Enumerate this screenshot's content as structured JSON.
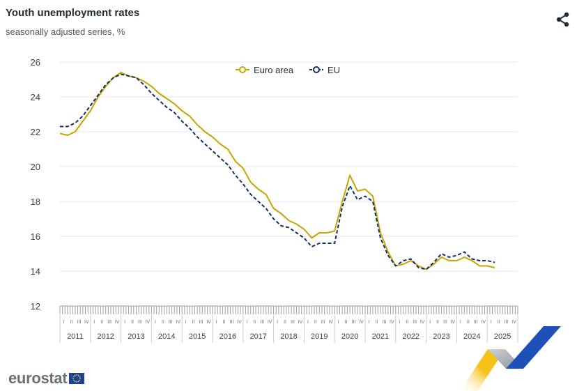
{
  "header": {
    "title": "Youth unemployment rates",
    "subtitle": "seasonally adjusted series, %",
    "share_icon": "share-icon"
  },
  "branding": {
    "logo_text": "eurostat",
    "flag_icon": "eu-flag-icon"
  },
  "colors": {
    "euro_area": "#c9a400",
    "eu": "#0e2f6e",
    "grid": "#e3e5ea",
    "axis_text": "#3c4048"
  },
  "chart_data": {
    "type": "line",
    "title": "Youth unemployment rates",
    "subtitle": "seasonally adjusted series, %",
    "xlabel": "",
    "ylabel": "",
    "ylim": [
      12,
      26
    ],
    "yticks": [
      12,
      14,
      16,
      18,
      20,
      22,
      24,
      26
    ],
    "grid": true,
    "legend_position": "top-center",
    "years": [
      "2011",
      "2012",
      "2013",
      "2014",
      "2015",
      "2016",
      "2017",
      "2018",
      "2019",
      "2020",
      "2021",
      "2022",
      "2023",
      "2024",
      "2025"
    ],
    "quarter_labels": [
      "I",
      "II",
      "III",
      "IV"
    ],
    "x_start": "2011-01",
    "x_end": "2025-12",
    "series": [
      {
        "name": "Euro area",
        "style": "solid",
        "points": [
          [
            "2011-01",
            21.9
          ],
          [
            "2011-04",
            21.8
          ],
          [
            "2011-07",
            22.0
          ],
          [
            "2011-10",
            22.6
          ],
          [
            "2012-01",
            23.2
          ],
          [
            "2012-04",
            24.0
          ],
          [
            "2012-07",
            24.6
          ],
          [
            "2012-10",
            25.1
          ],
          [
            "2013-01",
            25.4
          ],
          [
            "2013-04",
            25.2
          ],
          [
            "2013-07",
            25.1
          ],
          [
            "2013-10",
            24.9
          ],
          [
            "2014-01",
            24.6
          ],
          [
            "2014-04",
            24.2
          ],
          [
            "2014-07",
            23.9
          ],
          [
            "2014-10",
            23.6
          ],
          [
            "2015-01",
            23.2
          ],
          [
            "2015-04",
            22.9
          ],
          [
            "2015-07",
            22.4
          ],
          [
            "2015-10",
            22.0
          ],
          [
            "2016-01",
            21.7
          ],
          [
            "2016-04",
            21.3
          ],
          [
            "2016-07",
            21.0
          ],
          [
            "2016-10",
            20.3
          ],
          [
            "2017-01",
            19.9
          ],
          [
            "2017-04",
            19.1
          ],
          [
            "2017-07",
            18.7
          ],
          [
            "2017-10",
            18.4
          ],
          [
            "2018-01",
            17.6
          ],
          [
            "2018-04",
            17.3
          ],
          [
            "2018-07",
            16.9
          ],
          [
            "2018-10",
            16.7
          ],
          [
            "2019-01",
            16.4
          ],
          [
            "2019-04",
            15.9
          ],
          [
            "2019-07",
            16.2
          ],
          [
            "2019-10",
            16.2
          ],
          [
            "2020-01",
            16.3
          ],
          [
            "2020-04",
            18.0
          ],
          [
            "2020-07",
            19.5
          ],
          [
            "2020-10",
            18.6
          ],
          [
            "2021-01",
            18.7
          ],
          [
            "2021-04",
            18.3
          ],
          [
            "2021-07",
            16.2
          ],
          [
            "2021-10",
            15.1
          ],
          [
            "2022-01",
            14.3
          ],
          [
            "2022-04",
            14.4
          ],
          [
            "2022-07",
            14.6
          ],
          [
            "2022-10",
            14.3
          ],
          [
            "2023-01",
            14.1
          ],
          [
            "2023-04",
            14.4
          ],
          [
            "2023-07",
            14.8
          ],
          [
            "2023-10",
            14.6
          ],
          [
            "2024-01",
            14.6
          ],
          [
            "2024-04",
            14.8
          ],
          [
            "2024-07",
            14.6
          ],
          [
            "2024-10",
            14.3
          ],
          [
            "2025-01",
            14.3
          ],
          [
            "2025-04",
            14.2
          ]
        ]
      },
      {
        "name": "EU",
        "style": "dashed",
        "points": [
          [
            "2011-01",
            22.3
          ],
          [
            "2011-04",
            22.3
          ],
          [
            "2011-07",
            22.5
          ],
          [
            "2011-10",
            22.9
          ],
          [
            "2012-01",
            23.5
          ],
          [
            "2012-04",
            24.1
          ],
          [
            "2012-07",
            24.7
          ],
          [
            "2012-10",
            25.1
          ],
          [
            "2013-01",
            25.3
          ],
          [
            "2013-04",
            25.2
          ],
          [
            "2013-07",
            25.1
          ],
          [
            "2013-10",
            24.7
          ],
          [
            "2014-01",
            24.2
          ],
          [
            "2014-04",
            23.8
          ],
          [
            "2014-07",
            23.4
          ],
          [
            "2014-10",
            23.1
          ],
          [
            "2015-01",
            22.6
          ],
          [
            "2015-04",
            22.2
          ],
          [
            "2015-07",
            21.7
          ],
          [
            "2015-10",
            21.3
          ],
          [
            "2016-01",
            20.9
          ],
          [
            "2016-04",
            20.5
          ],
          [
            "2016-07",
            20.1
          ],
          [
            "2016-10",
            19.5
          ],
          [
            "2017-01",
            19.0
          ],
          [
            "2017-04",
            18.4
          ],
          [
            "2017-07",
            18.0
          ],
          [
            "2017-10",
            17.6
          ],
          [
            "2018-01",
            17.0
          ],
          [
            "2018-04",
            16.6
          ],
          [
            "2018-07",
            16.5
          ],
          [
            "2018-10",
            16.2
          ],
          [
            "2019-01",
            15.9
          ],
          [
            "2019-04",
            15.4
          ],
          [
            "2019-07",
            15.6
          ],
          [
            "2019-10",
            15.6
          ],
          [
            "2020-01",
            15.6
          ],
          [
            "2020-04",
            17.7
          ],
          [
            "2020-07",
            18.9
          ],
          [
            "2020-10",
            18.1
          ],
          [
            "2021-01",
            18.3
          ],
          [
            "2021-04",
            18.0
          ],
          [
            "2021-07",
            15.9
          ],
          [
            "2021-10",
            14.9
          ],
          [
            "2022-01",
            14.3
          ],
          [
            "2022-04",
            14.6
          ],
          [
            "2022-07",
            14.7
          ],
          [
            "2022-10",
            14.2
          ],
          [
            "2023-01",
            14.1
          ],
          [
            "2023-04",
            14.5
          ],
          [
            "2023-07",
            15.0
          ],
          [
            "2023-10",
            14.8
          ],
          [
            "2024-01",
            14.9
          ],
          [
            "2024-04",
            15.1
          ],
          [
            "2024-07",
            14.7
          ],
          [
            "2024-10",
            14.6
          ],
          [
            "2025-01",
            14.6
          ],
          [
            "2025-04",
            14.5
          ]
        ]
      }
    ]
  }
}
